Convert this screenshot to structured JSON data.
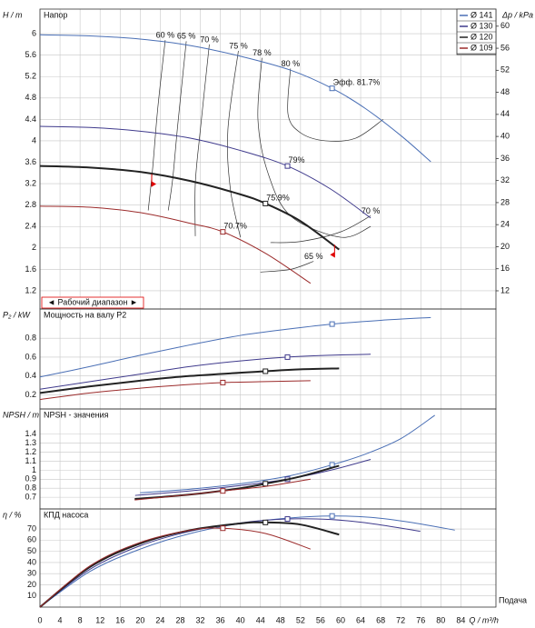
{
  "chart_data": [
    {
      "type": "line",
      "title": "Напор",
      "ylabel": "H / m",
      "y2label": "Δp / kPa",
      "ylim": [
        0.86,
        6.46
      ],
      "yticks": [
        1.2,
        1.6,
        2,
        2.4,
        2.8,
        3.2,
        3.6,
        4,
        4.4,
        4.8,
        5.2,
        5.6,
        6
      ],
      "y2lim": [
        8.7,
        63.1
      ],
      "y2ticks": [
        12,
        16,
        20,
        24,
        28,
        32,
        36,
        40,
        44,
        48,
        52,
        56,
        60
      ],
      "grid": true,
      "legend": "top-right",
      "series": [
        {
          "name": "Ø 141",
          "color": "#4a6fb5",
          "line_width": 1,
          "x": [
            0,
            10,
            20,
            30,
            40,
            50,
            58.3,
            65,
            72,
            78
          ],
          "values": [
            5.98,
            5.96,
            5.9,
            5.78,
            5.58,
            5.32,
            4.98,
            4.6,
            4.1,
            3.61
          ],
          "marker": {
            "x": 58.3,
            "y": 4.98,
            "label": "Эфф. 81.7%"
          }
        },
        {
          "name": "Ø 130",
          "color": "#3f3a8c",
          "line_width": 1,
          "x": [
            0,
            10,
            20,
            30,
            40,
            49.4,
            58,
            66
          ],
          "values": [
            4.27,
            4.25,
            4.18,
            4.05,
            3.82,
            3.53,
            3.1,
            2.56
          ],
          "marker": {
            "x": 49.4,
            "y": 3.53,
            "label": "79%"
          }
        },
        {
          "name": "Ø 120",
          "color": "#222222",
          "line_width": 2,
          "x": [
            0,
            10,
            20,
            30,
            40,
            45,
            52,
            59.7
          ],
          "values": [
            3.53,
            3.5,
            3.42,
            3.25,
            3.0,
            2.83,
            2.5,
            1.97
          ],
          "marker": {
            "x": 45,
            "y": 2.83,
            "label": "75.9%"
          }
        },
        {
          "name": "Ø 109",
          "color": "#9b2a2a",
          "line_width": 1,
          "x": [
            0,
            10,
            20,
            30,
            36.5,
            45,
            54
          ],
          "values": [
            2.78,
            2.76,
            2.66,
            2.46,
            2.3,
            1.9,
            1.34
          ],
          "marker": {
            "x": 36.5,
            "y": 2.3,
            "label": "70.7%"
          }
        }
      ],
      "iso_lines": [
        {
          "label": "60 %",
          "x": [
            25,
            23.5,
            22.5,
            21.6
          ],
          "y": [
            5.88,
            4.6,
            3.5,
            2.7
          ]
        },
        {
          "label": "65 %",
          "x": [
            29.2,
            27.5,
            26.5,
            25.6
          ],
          "y": [
            5.86,
            4.3,
            3.3,
            2.7
          ]
        },
        {
          "label": "70 %",
          "x": [
            33.8,
            32,
            31,
            31
          ],
          "y": [
            5.8,
            4.2,
            3.2,
            2.22
          ]
        },
        {
          "label": "75 %",
          "x": [
            39.6,
            37.5,
            38,
            40
          ],
          "y": [
            5.68,
            4.2,
            3.1,
            2.2
          ]
        },
        {
          "label": "78 %",
          "x": [
            44.3,
            43.5,
            45.5,
            50,
            60,
            66
          ],
          "y": [
            5.55,
            4.4,
            3.4,
            2.6,
            2.2,
            2.4
          ]
        },
        {
          "label": "80 %",
          "x": [
            50,
            49.5,
            52,
            57,
            63,
            68.5
          ],
          "y": [
            5.35,
            4.5,
            4.15,
            4.0,
            4.05,
            4.4
          ]
        },
        {
          "label": "70 %",
          "x": [
            66,
            60,
            52,
            46
          ],
          "y": [
            2.6,
            2.3,
            2.12,
            2.1
          ]
        },
        {
          "label": "65 %",
          "x": [
            54.6,
            50,
            44
          ],
          "y": [
            1.75,
            1.6,
            1.55
          ]
        }
      ],
      "operating_range": {
        "label": "◄ Рабочий диапазон ►",
        "color": "#e00000",
        "x": [
          22.3,
          58.8
        ],
        "y": [
          3.38,
          2.06
        ]
      }
    },
    {
      "type": "line",
      "title": "Мощность на валу P2",
      "ylabel": "P₂ / kW",
      "ylim": [
        0.05,
        1.11
      ],
      "yticks": [
        0.2,
        0.4,
        0.6,
        0.8
      ],
      "grid": true,
      "series": [
        {
          "color": "#4a6fb5",
          "line_width": 1,
          "x": [
            0,
            10,
            20,
            30,
            40,
            50,
            58.3,
            68,
            78
          ],
          "values": [
            0.39,
            0.5,
            0.62,
            0.73,
            0.83,
            0.9,
            0.95,
            0.99,
            1.02
          ],
          "marker": {
            "x": 58.3,
            "y": 0.95
          }
        },
        {
          "color": "#3f3a8c",
          "line_width": 1,
          "x": [
            0,
            10,
            20,
            30,
            40,
            49.4,
            58,
            66
          ],
          "values": [
            0.26,
            0.34,
            0.42,
            0.5,
            0.56,
            0.6,
            0.62,
            0.63
          ],
          "marker": {
            "x": 49.4,
            "y": 0.6
          }
        },
        {
          "color": "#222222",
          "line_width": 2,
          "x": [
            0,
            10,
            20,
            30,
            45,
            52,
            59.7
          ],
          "values": [
            0.22,
            0.29,
            0.35,
            0.4,
            0.45,
            0.47,
            0.48
          ],
          "marker": {
            "x": 45,
            "y": 0.45
          }
        },
        {
          "color": "#9b2a2a",
          "line_width": 1,
          "x": [
            0,
            10,
            20,
            30,
            36.5,
            45,
            54
          ],
          "values": [
            0.15,
            0.22,
            0.27,
            0.31,
            0.33,
            0.34,
            0.35
          ],
          "marker": {
            "x": 36.5,
            "y": 0.33
          }
        }
      ]
    },
    {
      "type": "line",
      "title": "NPSH - значения",
      "ylabel": "NPSH / m",
      "ylim": [
        0.57,
        1.68
      ],
      "yticks": [
        0.7,
        0.8,
        0.9,
        1,
        1.1,
        1.2,
        1.3,
        1.4
      ],
      "grid": true,
      "series": [
        {
          "color": "#4a6fb5",
          "line_width": 1,
          "x": [
            20,
            30,
            40,
            50,
            58.3,
            65,
            72,
            78.8
          ],
          "values": [
            0.75,
            0.79,
            0.85,
            0.94,
            1.06,
            1.18,
            1.35,
            1.61
          ],
          "marker": {
            "x": 58.3,
            "y": 1.06
          }
        },
        {
          "color": "#3f3a8c",
          "line_width": 1,
          "x": [
            19,
            30,
            40,
            49.4,
            58,
            66
          ],
          "values": [
            0.72,
            0.77,
            0.83,
            0.9,
            1.0,
            1.12
          ],
          "marker": {
            "x": 49.4,
            "y": 0.9
          }
        },
        {
          "color": "#222222",
          "line_width": 2,
          "x": [
            18.9,
            30,
            40,
            45,
            52,
            59.7
          ],
          "values": [
            0.68,
            0.73,
            0.8,
            0.85,
            0.93,
            1.05
          ],
          "marker": {
            "x": 45,
            "y": 0.85
          }
        },
        {
          "color": "#9b2a2a",
          "line_width": 1,
          "x": [
            18.9,
            30,
            36.5,
            45,
            54
          ],
          "values": [
            0.67,
            0.73,
            0.77,
            0.82,
            0.9
          ],
          "marker": {
            "x": 36.5,
            "y": 0.77
          }
        }
      ]
    },
    {
      "type": "line",
      "title": "КПД насоса",
      "ylabel": "η / %",
      "ylim": [
        0,
        88
      ],
      "yticks": [
        10,
        20,
        30,
        40,
        50,
        60,
        70
      ],
      "grid": true,
      "xlim": [
        0,
        91
      ],
      "xticks": [
        0,
        4,
        8,
        12,
        16,
        20,
        24,
        28,
        32,
        36,
        40,
        44,
        48,
        52,
        56,
        60,
        64,
        68,
        72,
        76,
        80,
        84
      ],
      "xlabel": "Q / m³/h",
      "xsublabel": "Подача",
      "series": [
        {
          "color": "#4a6fb5",
          "line_width": 1,
          "x": [
            0,
            10,
            20,
            30,
            40,
            50,
            58.3,
            66,
            74,
            82.8
          ],
          "values": [
            0,
            32,
            52,
            66,
            75,
            80,
            81.7,
            80.5,
            76,
            69
          ],
          "marker": {
            "x": 58.3,
            "y": 81.7
          }
        },
        {
          "color": "#3f3a8c",
          "line_width": 1,
          "x": [
            0,
            10,
            20,
            30,
            40,
            49.4,
            58,
            66,
            75.9
          ],
          "values": [
            0,
            34,
            55,
            68,
            75.5,
            79,
            78.5,
            75,
            68
          ],
          "marker": {
            "x": 49.4,
            "y": 79
          }
        },
        {
          "color": "#222222",
          "line_width": 2,
          "x": [
            0,
            10,
            20,
            30,
            40,
            45,
            52,
            59.7
          ],
          "values": [
            0,
            36,
            57,
            69,
            75,
            75.9,
            74,
            65
          ],
          "marker": {
            "x": 45,
            "y": 75.9
          }
        },
        {
          "color": "#9b2a2a",
          "line_width": 1,
          "x": [
            0,
            10,
            20,
            30,
            36.5,
            45,
            54
          ],
          "values": [
            0,
            37,
            58,
            69,
            70.7,
            66,
            52
          ],
          "marker": {
            "x": 36.5,
            "y": 70.7
          }
        }
      ]
    }
  ]
}
